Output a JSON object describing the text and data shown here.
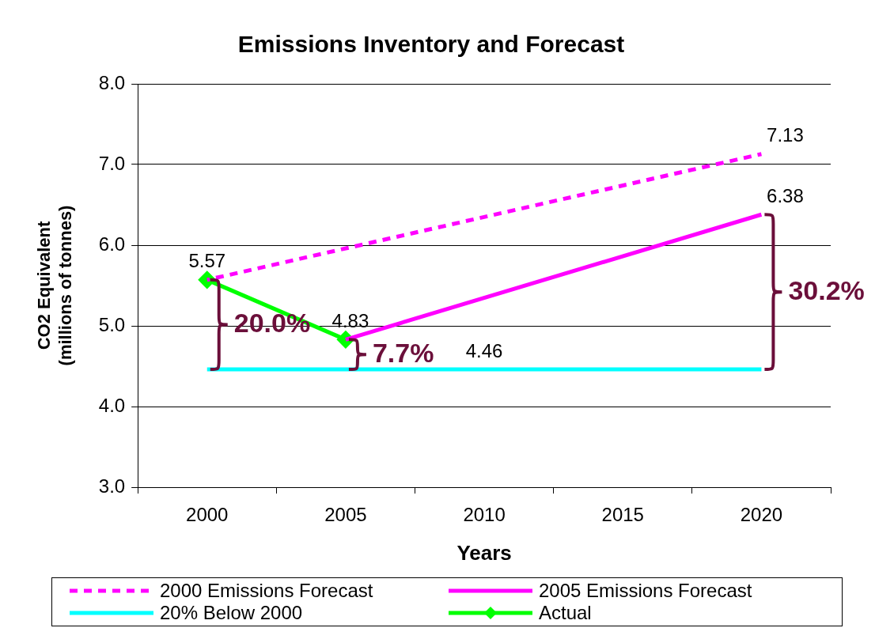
{
  "chart_data": {
    "type": "line",
    "title": "Emissions Inventory and Forecast",
    "xlabel": "Years",
    "ylabel": "CO2 Equivalent\n(millions of tonnes)",
    "categories": [
      "2000",
      "2005",
      "2010",
      "2015",
      "2020"
    ],
    "series": [
      {
        "name": "2000 Emissions Forecast",
        "color": "#ff00ff",
        "line_style": "dashed",
        "marker": "none",
        "values": [
          5.57,
          null,
          null,
          null,
          7.13
        ],
        "value_labels": [
          null,
          null,
          null,
          null,
          "7.13"
        ]
      },
      {
        "name": "20% Below 2000",
        "color": "#00ffff",
        "line_style": "solid",
        "marker": "none",
        "values": [
          4.46,
          4.46,
          4.46,
          4.46,
          4.46
        ],
        "value_labels": [
          null,
          null,
          "4.46",
          null,
          null
        ]
      },
      {
        "name": "2005 Emissions Forecast",
        "color": "#ff00ff",
        "line_style": "solid",
        "marker": "none",
        "values": [
          null,
          4.83,
          null,
          null,
          6.38
        ],
        "value_labels": [
          null,
          null,
          null,
          null,
          "6.38"
        ]
      },
      {
        "name": "Actual",
        "color": "#00ff00",
        "line_style": "solid",
        "marker": "diamond",
        "values": [
          5.57,
          4.83,
          null,
          null,
          null
        ],
        "value_labels": [
          "5.57",
          "4.83",
          null,
          null,
          null
        ]
      }
    ],
    "ylim": [
      3,
      8
    ],
    "yticks": [
      {
        "value": 3,
        "label": "3.0"
      },
      {
        "value": 4,
        "label": "4.0"
      },
      {
        "value": 5,
        "label": "5.0"
      },
      {
        "value": 6,
        "label": "6.0"
      },
      {
        "value": 7,
        "label": "7.0"
      },
      {
        "value": 8,
        "label": "8.0"
      }
    ],
    "grid": "y",
    "legend": "bottom",
    "annotations": [
      "20.0%",
      "7.7%",
      "30.2%"
    ]
  }
}
